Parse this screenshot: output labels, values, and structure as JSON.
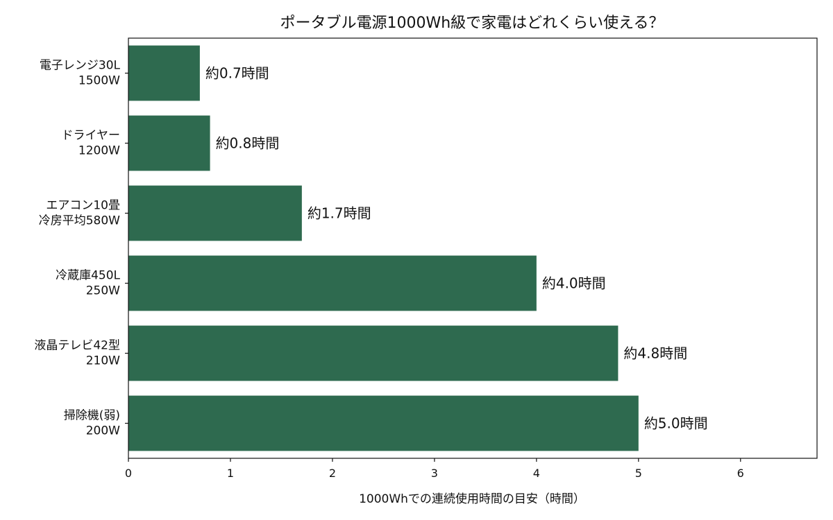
{
  "chart_data": {
    "type": "bar",
    "orientation": "horizontal",
    "title": "ポータブル電源1000Wh級で家電はどれくらい使える？",
    "xlabel": "1000Whでの連続使用時間の目安（時間）",
    "ylabel": "",
    "categories": [
      [
        "電子レンジ30L",
        "1500W"
      ],
      [
        "ドライヤー",
        "1200W"
      ],
      [
        "エアコン10畳",
        "冷房平均580W"
      ],
      [
        "冷蔵庫450L",
        "250W"
      ],
      [
        "液晶テレビ42型",
        "210W"
      ],
      [
        "掃除機(弱)",
        "200W"
      ]
    ],
    "values": [
      0.7,
      0.8,
      1.7,
      4.0,
      4.8,
      5.0
    ],
    "data_labels": [
      "約0.7時間",
      "約0.8時間",
      "約1.7時間",
      "約4.0時間",
      "約4.8時間",
      "約5.0時間"
    ],
    "xlim": [
      0,
      6.75
    ],
    "xticks": [
      0,
      1,
      2,
      3,
      4,
      5,
      6
    ],
    "grid": false,
    "legend": "none",
    "bar_color": "#2e6a4f"
  }
}
